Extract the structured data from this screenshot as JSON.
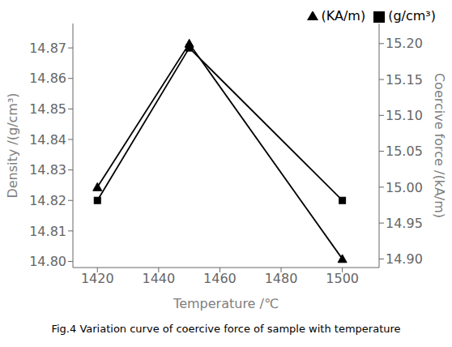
{
  "chart_data": {
    "type": "line",
    "caption": "Fig.4 Variation curve of coercive force of sample with temperature",
    "xlabel": "Temperature /℃",
    "ylabel": "Density /(g/cm³)",
    "y2label": "Coercive force /(kA/m)",
    "x": [
      1420,
      1450,
      1500
    ],
    "series": [
      {
        "name": "(g/cm³)",
        "color": "#000000",
        "marker": "square",
        "line_style": "solid",
        "values": [
          14.82,
          14.87,
          14.82
        ]
      },
      {
        "name": "(KA/m)",
        "color": "#000000",
        "marker": "triangle",
        "line_style": "solid",
        "axis": "y2",
        "values": [
          15.0,
          15.2,
          14.9
        ]
      }
    ],
    "xlim": [
      1412,
      1512
    ],
    "xticks": [
      1420,
      1440,
      1460,
      1480,
      1500
    ],
    "ylim": [
      14.798,
      14.878
    ],
    "yticks": [
      {
        "value": 14.8,
        "label": "14.80"
      },
      14.81,
      14.82,
      14.83,
      14.84,
      14.85,
      14.86,
      14.87
    ],
    "y2lim": [
      14.888,
      15.228
    ],
    "y2ticks": [
      {
        "value": 14.9,
        "label": "14.90"
      },
      14.95,
      {
        "value": 15.0,
        "label": "15.00"
      },
      15.05,
      {
        "value": 15.1,
        "label": "15.10"
      },
      15.15,
      {
        "value": 15.2,
        "label": "15.20"
      }
    ],
    "legend": "upper right",
    "grid": false
  }
}
